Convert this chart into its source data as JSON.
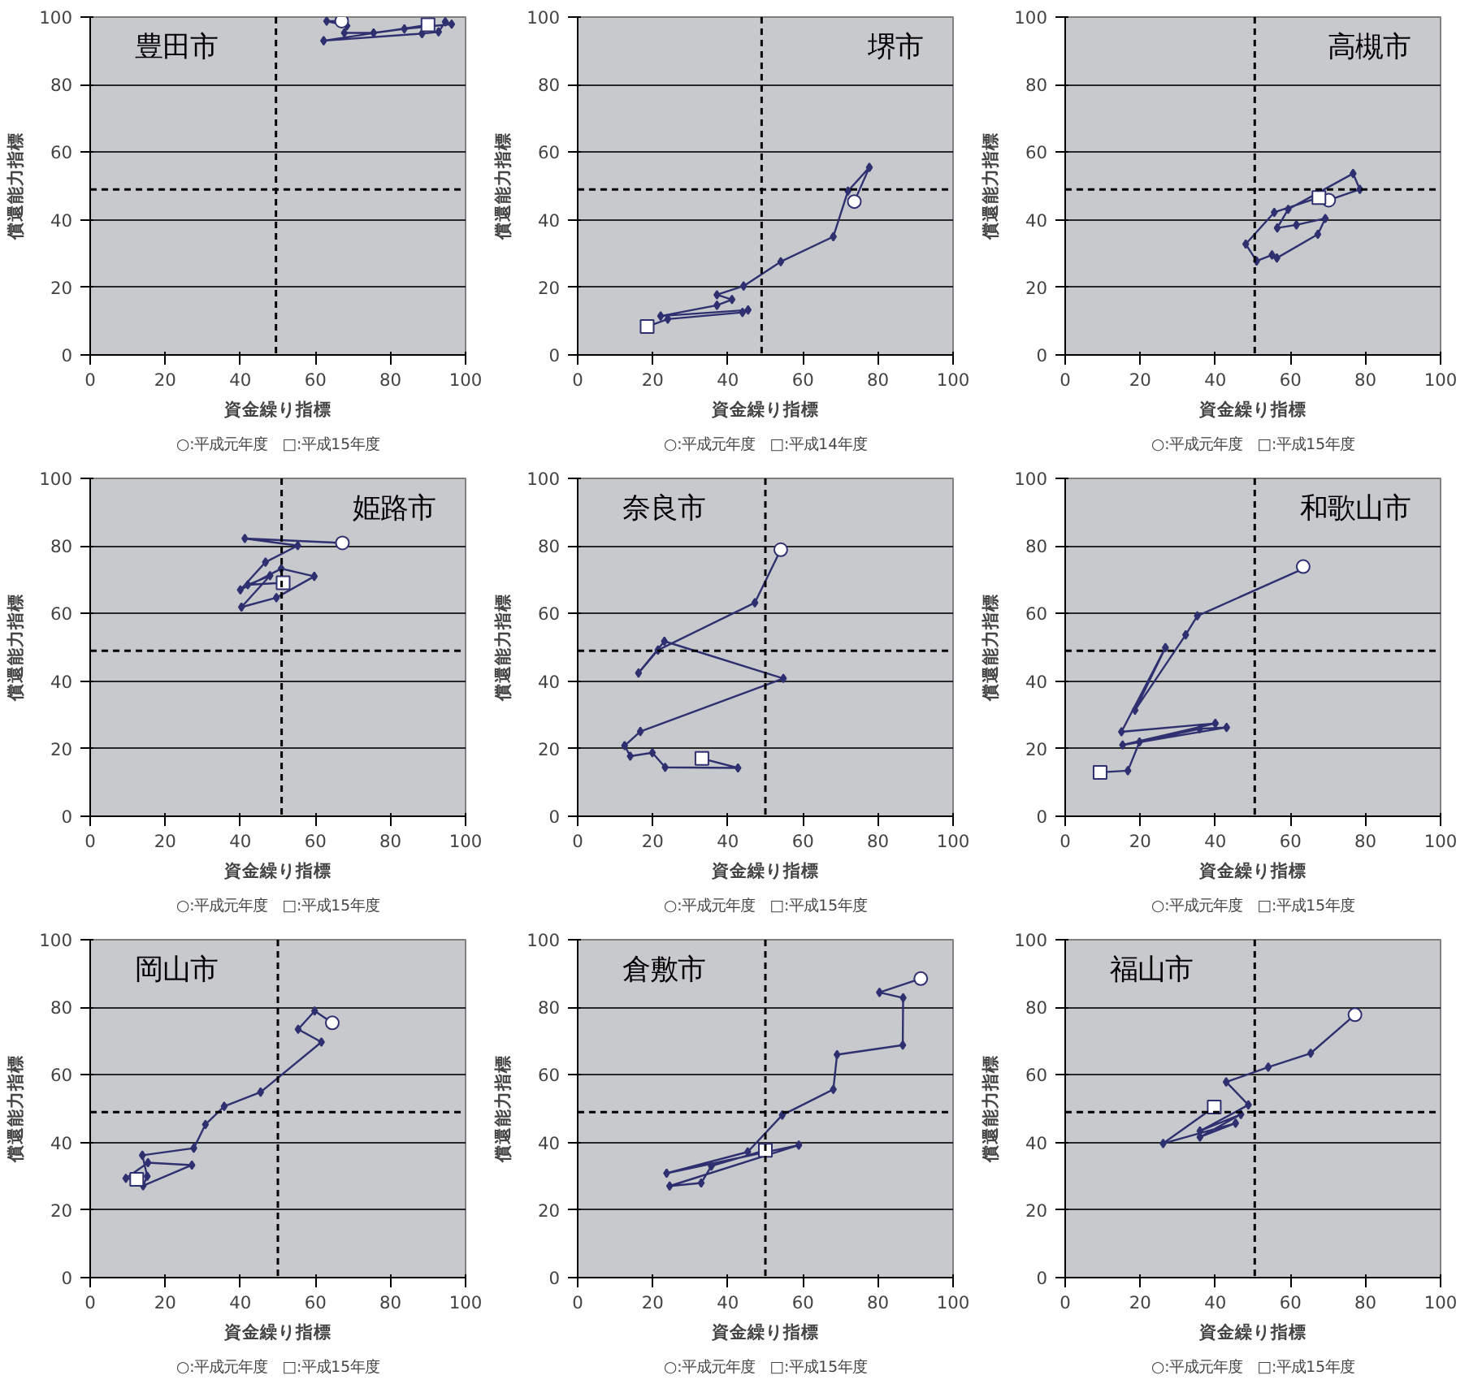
{
  "chart_data": [
    {
      "type": "line",
      "title": "豊田市",
      "xlabel": "資金繰り指標",
      "ylabel": "償還能力指標",
      "annotations": [
        "○:平成元年度　□:平成15年度"
      ],
      "xlim": [
        0,
        100
      ],
      "ylim": [
        0,
        100
      ],
      "xticks": [
        0,
        20,
        40,
        60,
        80,
        100
      ],
      "yticks": [
        0,
        20,
        40,
        60,
        80,
        100
      ],
      "grid": "y",
      "marker": "diamond",
      "ref_lines": [
        {
          "axis": "x",
          "value": 49.5,
          "line_style": "dashed",
          "color": "#000000"
        },
        {
          "axis": "y",
          "value": 49,
          "line_style": "dashed",
          "color": "#000000"
        }
      ],
      "series": [
        {
          "color": "#2e3070",
          "x": [
            67,
            63,
            68.4,
            67.7,
            75.5,
            83.7,
            96.3,
            94.6,
            92.8,
            88.4,
            62.2,
            90
          ],
          "values": [
            98.8,
            98.8,
            97.4,
            95.3,
            95.3,
            96.5,
            97.9,
            98.6,
            95.6,
            95.1,
            93,
            97.7
          ]
        },
        {
          "type": "scatter",
          "marker": "circle",
          "color": "#ffffff",
          "x": [
            67
          ],
          "values": [
            98.8
          ]
        },
        {
          "type": "scatter",
          "marker": "square",
          "color": "#ffffff",
          "x": [
            90
          ],
          "values": [
            97.7
          ]
        }
      ]
    },
    {
      "type": "line",
      "title": "堺市",
      "xlabel": "資金繰り指標",
      "ylabel": "償還能力指標",
      "annotations": [
        "○:平成元年度　□:平成14年度"
      ],
      "xlim": [
        0,
        100
      ],
      "ylim": [
        0,
        100
      ],
      "xticks": [
        0,
        20,
        40,
        60,
        80,
        100
      ],
      "yticks": [
        0,
        20,
        40,
        60,
        80,
        100
      ],
      "grid": "y",
      "marker": "diamond",
      "ref_lines": [
        {
          "axis": "x",
          "value": 49,
          "line_style": "dashed",
          "color": "#000000"
        },
        {
          "axis": "y",
          "value": 49,
          "line_style": "dashed",
          "color": "#000000"
        }
      ],
      "series": [
        {
          "color": "#2e3070",
          "x": [
            73.7,
            77.7,
            72,
            68.1,
            54.1,
            44.2,
            37.1,
            41.1,
            37.1,
            22.1,
            45.4,
            43.9,
            24,
            18.5
          ],
          "values": [
            45.4,
            55.5,
            48.5,
            35,
            27.6,
            20.4,
            17.8,
            16.4,
            14.7,
            11.5,
            13.3,
            12.6,
            10.6,
            8.4
          ]
        },
        {
          "type": "scatter",
          "marker": "circle",
          "color": "#ffffff",
          "x": [
            73.7
          ],
          "values": [
            45.4
          ]
        },
        {
          "type": "scatter",
          "marker": "square",
          "color": "#ffffff",
          "x": [
            18.5
          ],
          "values": [
            8.4
          ]
        }
      ]
    },
    {
      "type": "line",
      "title": "高槻市",
      "xlabel": "資金繰り指標",
      "ylabel": "償還能力指標",
      "annotations": [
        "○:平成元年度　□:平成15年度"
      ],
      "xlim": [
        0,
        100
      ],
      "ylim": [
        0,
        100
      ],
      "xticks": [
        0,
        20,
        40,
        60,
        80,
        100
      ],
      "yticks": [
        0,
        20,
        40,
        60,
        80,
        100
      ],
      "grid": "y",
      "marker": "diamond",
      "ref_lines": [
        {
          "axis": "x",
          "value": 50.5,
          "line_style": "dashed",
          "color": "#000000"
        },
        {
          "axis": "y",
          "value": 49,
          "line_style": "dashed",
          "color": "#000000"
        }
      ],
      "series": [
        {
          "color": "#2e3070",
          "x": [
            70.2,
            78.5,
            76.7,
            59.4,
            56.5,
            61.6,
            69.3,
            67.3,
            56.4,
            55.1,
            51,
            48.1,
            55.7,
            67.6
          ],
          "values": [
            45.8,
            49,
            53.7,
            43.1,
            37.6,
            38.5,
            40.4,
            35.7,
            28.7,
            29.6,
            27.8,
            32.8,
            42.2,
            46.6
          ]
        },
        {
          "type": "scatter",
          "marker": "circle",
          "color": "#ffffff",
          "x": [
            70.2
          ],
          "values": [
            45.8
          ]
        },
        {
          "type": "scatter",
          "marker": "square",
          "color": "#ffffff",
          "x": [
            67.6
          ],
          "values": [
            46.6
          ]
        }
      ]
    },
    {
      "type": "line",
      "title": "姫路市",
      "xlabel": "資金繰り指標",
      "ylabel": "償還能力指標",
      "annotations": [
        "○:平成元年度　□:平成15年度"
      ],
      "xlim": [
        0,
        100
      ],
      "ylim": [
        0,
        100
      ],
      "xticks": [
        0,
        20,
        40,
        60,
        80,
        100
      ],
      "yticks": [
        0,
        20,
        40,
        60,
        80,
        100
      ],
      "grid": "y",
      "marker": "diamond",
      "ref_lines": [
        {
          "axis": "x",
          "value": 51,
          "line_style": "dashed",
          "color": "#000000"
        },
        {
          "axis": "y",
          "value": 49,
          "line_style": "dashed",
          "color": "#000000"
        }
      ],
      "series": [
        {
          "color": "#2e3070",
          "x": [
            67.2,
            41.2,
            55.3,
            46.7,
            40,
            50.9,
            59.7,
            49.6,
            40.3,
            47.9,
            42,
            null,
            51.4
          ],
          "values": [
            80.9,
            82.2,
            80.1,
            75.2,
            67,
            73.3,
            71,
            64.7,
            61.9,
            71.2,
            68.5,
            null,
            69.1
          ]
        },
        {
          "type": "scatter",
          "marker": "circle",
          "color": "#ffffff",
          "x": [
            67.2
          ],
          "values": [
            80.9
          ]
        },
        {
          "type": "scatter",
          "marker": "square",
          "color": "#ffffff",
          "x": [
            51.4
          ],
          "values": [
            69.1
          ]
        }
      ]
    },
    {
      "type": "line",
      "title": "奈良市",
      "xlabel": "資金繰り指標",
      "ylabel": "償還能力指標",
      "annotations": [
        "○:平成元年度　□:平成15年度"
      ],
      "xlim": [
        0,
        100
      ],
      "ylim": [
        0,
        100
      ],
      "xticks": [
        0,
        20,
        40,
        60,
        80,
        100
      ],
      "yticks": [
        0,
        20,
        40,
        60,
        80,
        100
      ],
      "grid": "y",
      "marker": "diamond",
      "ref_lines": [
        {
          "axis": "x",
          "value": 50,
          "line_style": "dashed",
          "color": "#000000"
        },
        {
          "axis": "y",
          "value": 49,
          "line_style": "dashed",
          "color": "#000000"
        }
      ],
      "series": [
        {
          "color": "#2e3070",
          "x": [
            54.1,
            null,
            47.2,
            21.4,
            16.2,
            23.1,
            54.8,
            16.7,
            12.5,
            14,
            19.9,
            23.3,
            42.7,
            33.1
          ],
          "values": [
            78.9,
            null,
            63.2,
            49.2,
            42.4,
            51.8,
            40.8,
            25.1,
            20.9,
            17.8,
            18.8,
            14.5,
            14.3,
            17.1
          ]
        },
        {
          "type": "scatter",
          "marker": "circle",
          "color": "#ffffff",
          "x": [
            54.1
          ],
          "values": [
            78.9
          ]
        },
        {
          "type": "scatter",
          "marker": "square",
          "color": "#ffffff",
          "x": [
            33.1
          ],
          "values": [
            17.1
          ]
        }
      ]
    },
    {
      "type": "line",
      "title": "和歌山市",
      "xlabel": "資金繰り指標",
      "ylabel": "償還能力指標",
      "annotations": [
        "○:平成元年度　□:平成15年度"
      ],
      "xlim": [
        0,
        100
      ],
      "ylim": [
        0,
        100
      ],
      "xticks": [
        0,
        20,
        40,
        60,
        80,
        100
      ],
      "yticks": [
        0,
        20,
        40,
        60,
        80,
        100
      ],
      "grid": "y",
      "marker": "diamond",
      "ref_lines": [
        {
          "axis": "x",
          "value": 50.5,
          "line_style": "dashed",
          "color": "#000000"
        },
        {
          "axis": "y",
          "value": 49,
          "line_style": "dashed",
          "color": "#000000"
        }
      ],
      "series": [
        {
          "color": "#2e3070",
          "x": [
            63.4,
            64.1,
            35.2,
            32.1,
            18.6,
            26.7,
            15,
            40,
            15.3,
            43,
            35.8,
            19.8,
            16.7,
            9.3
          ],
          "values": [
            73.9,
            73.6,
            59.3,
            53.7,
            31.4,
            49.9,
            25,
            27.5,
            21.1,
            26.3,
            25.9,
            22,
            13.5,
            13
          ]
        },
        {
          "type": "scatter",
          "marker": "circle",
          "color": "#ffffff",
          "x": [
            63.4
          ],
          "values": [
            73.9
          ]
        },
        {
          "type": "scatter",
          "marker": "square",
          "color": "#ffffff",
          "x": [
            9.3
          ],
          "values": [
            13
          ]
        }
      ]
    },
    {
      "type": "line",
      "title": "岡山市",
      "xlabel": "資金繰り指標",
      "ylabel": "償還能力指標",
      "annotations": [
        "○:平成元年度　□:平成15年度"
      ],
      "xlim": [
        0,
        100
      ],
      "ylim": [
        0,
        100
      ],
      "xticks": [
        0,
        20,
        40,
        60,
        80,
        100
      ],
      "yticks": [
        0,
        20,
        40,
        60,
        80,
        100
      ],
      "grid": "y",
      "marker": "diamond",
      "ref_lines": [
        {
          "axis": "x",
          "value": 50,
          "line_style": "dashed",
          "color": "#000000"
        },
        {
          "axis": "y",
          "value": 49,
          "line_style": "dashed",
          "color": "#000000"
        }
      ],
      "series": [
        {
          "color": "#2e3070",
          "x": [
            64.5,
            59.8,
            55.4,
            61.6,
            45.4,
            35.7,
            30.7,
            27.6,
            13.9,
            15.2,
            14.1,
            27.1,
            15.4,
            9.5,
            12.4
          ],
          "values": [
            75.4,
            78.9,
            73.5,
            69.7,
            54.9,
            50.7,
            45.3,
            38.3,
            36.2,
            30,
            27.2,
            33.3,
            34,
            29.4,
            29.1
          ]
        },
        {
          "type": "scatter",
          "marker": "circle",
          "color": "#ffffff",
          "x": [
            64.5
          ],
          "values": [
            75.4
          ]
        },
        {
          "type": "scatter",
          "marker": "square",
          "color": "#ffffff",
          "x": [
            12.4
          ],
          "values": [
            29.1
          ]
        }
      ]
    },
    {
      "type": "line",
      "title": "倉敷市",
      "xlabel": "資金繰り指標",
      "ylabel": "償還能力指標",
      "annotations": [
        "○:平成元年度　□:平成15年度"
      ],
      "xlim": [
        0,
        100
      ],
      "ylim": [
        0,
        100
      ],
      "xticks": [
        0,
        20,
        40,
        60,
        80,
        100
      ],
      "yticks": [
        0,
        20,
        40,
        60,
        80,
        100
      ],
      "grid": "y",
      "marker": "diamond",
      "ref_lines": [
        {
          "axis": "x",
          "value": 50,
          "line_style": "dashed",
          "color": "#000000"
        },
        {
          "axis": "y",
          "value": 49,
          "line_style": "dashed",
          "color": "#000000"
        }
      ],
      "series": [
        {
          "color": "#2e3070",
          "x": [
            91.4,
            80.4,
            86.7,
            86.6,
            69.1,
            68.1,
            54.5,
            45.3,
            23.7,
            58.9,
            24.5,
            32.9,
            35.6,
            50
          ],
          "values": [
            88.5,
            84.4,
            82.8,
            68.8,
            66,
            55.7,
            48.1,
            37.2,
            30.9,
            39.2,
            27.1,
            28,
            33,
            37.7
          ]
        },
        {
          "type": "scatter",
          "marker": "circle",
          "color": "#ffffff",
          "x": [
            91.4
          ],
          "values": [
            88.5
          ]
        },
        {
          "type": "scatter",
          "marker": "square",
          "color": "#ffffff",
          "x": [
            50
          ],
          "values": [
            37.7
          ]
        }
      ]
    },
    {
      "type": "line",
      "title": "福山市",
      "xlabel": "資金繰り指標",
      "ylabel": "償還能力指標",
      "annotations": [
        "○:平成元年度　□:平成15年度"
      ],
      "xlim": [
        0,
        100
      ],
      "ylim": [
        0,
        100
      ],
      "xticks": [
        0,
        20,
        40,
        60,
        80,
        100
      ],
      "yticks": [
        0,
        20,
        40,
        60,
        80,
        100
      ],
      "grid": "y",
      "marker": "diamond",
      "ref_lines": [
        {
          "axis": "x",
          "value": 50.5,
          "line_style": "dashed",
          "color": "#000000"
        },
        {
          "axis": "y",
          "value": 49,
          "line_style": "dashed",
          "color": "#000000"
        }
      ],
      "series": [
        {
          "color": "#2e3070",
          "x": [
            77.2,
            65.4,
            54.1,
            42.9,
            null,
            48.8,
            35.9,
            46.8,
            35.9,
            45.4,
            26.1,
            39.7
          ],
          "values": [
            77.8,
            66.4,
            62.3,
            57.9,
            null,
            51.1,
            43.4,
            48.3,
            41.6,
            45.7,
            39.7,
            50.5
          ]
        },
        {
          "type": "scatter",
          "marker": "circle",
          "color": "#ffffff",
          "x": [
            77.2
          ],
          "values": [
            77.8
          ]
        },
        {
          "type": "scatter",
          "marker": "square",
          "color": "#ffffff",
          "x": [
            39.7
          ],
          "values": [
            50.5
          ]
        }
      ]
    }
  ]
}
